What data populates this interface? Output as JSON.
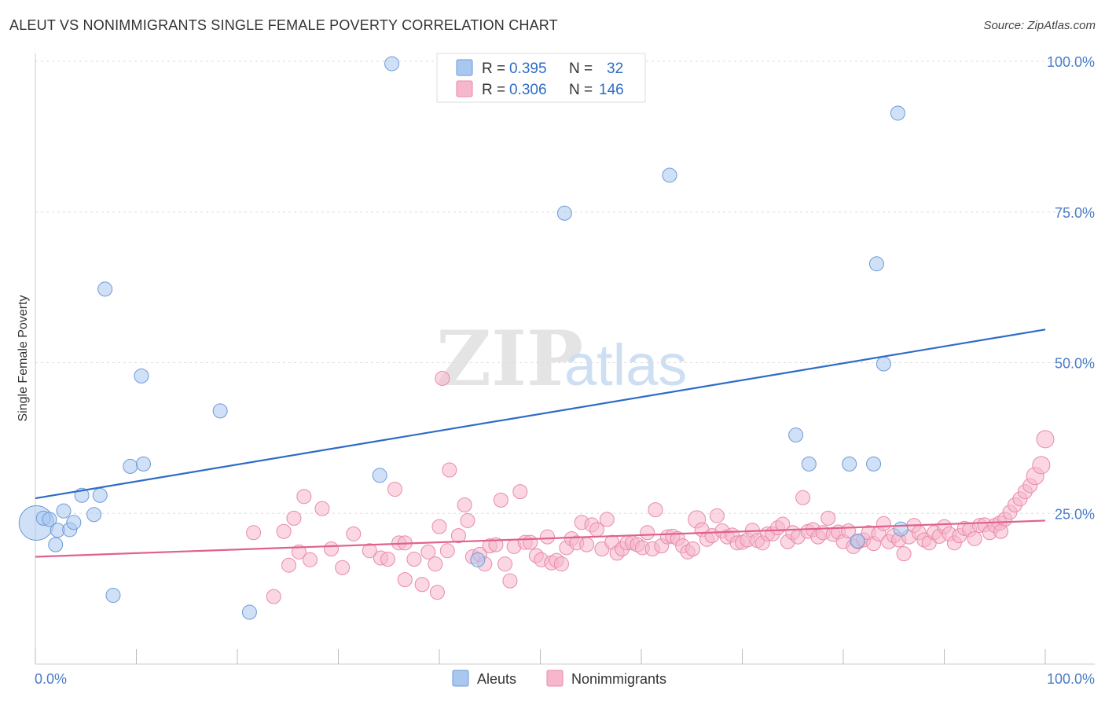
{
  "title": "ALEUT VS NONIMMIGRANTS SINGLE FEMALE POVERTY CORRELATION CHART",
  "source": "Source: ZipAtlas.com",
  "watermark": {
    "zip": "ZIP",
    "atlas": "atlas"
  },
  "colors": {
    "aleut_fill": "#a9c8f0",
    "aleut_stroke": "#6d9ad6",
    "aleut_line": "#2f6cc6",
    "nonimm_fill": "#f6b6cb",
    "nonimm_stroke": "#e98aa9",
    "nonimm_line": "#e0618d",
    "tick_text": "#4a7cc9",
    "grid": "#dddddd"
  },
  "legend": {
    "rows": [
      {
        "r_label": "R =",
        "r_value": "0.395",
        "n_label": "N =",
        "n_value": "32"
      },
      {
        "r_label": "R =",
        "r_value": "0.306",
        "n_label": "N =",
        "n_value": "146"
      }
    ]
  },
  "chart_data": {
    "type": "scatter",
    "title": "ALEUT VS NONIMMIGRANTS SINGLE FEMALE POVERTY CORRELATION CHART",
    "xlabel": "",
    "ylabel": "Single Female Poverty",
    "xlim": [
      0,
      100
    ],
    "ylim": [
      0,
      100
    ],
    "x_tick_labels": [
      "0.0%",
      "100.0%"
    ],
    "y_ticks": [
      25,
      50,
      75,
      100
    ],
    "y_tick_labels": [
      "25.0%",
      "50.0%",
      "75.0%",
      "100.0%"
    ],
    "grid": true,
    "legend_position": "top-center",
    "series": [
      {
        "name": "Aleuts",
        "r": 0.395,
        "n": 32,
        "trend": {
          "x": [
            0,
            100
          ],
          "y": [
            27.5,
            55.5
          ]
        },
        "points": [
          [
            0.1,
            23.4,
            22
          ],
          [
            0.8,
            24.2,
            9
          ],
          [
            1.4,
            24.0,
            9
          ],
          [
            2.0,
            19.8,
            9
          ],
          [
            2.2,
            22.2,
            9
          ],
          [
            2.8,
            25.4,
            9
          ],
          [
            3.4,
            22.3,
            9
          ],
          [
            3.8,
            23.5,
            9
          ],
          [
            4.6,
            28.0,
            9
          ],
          [
            5.8,
            24.8,
            9
          ],
          [
            6.4,
            28.0,
            9
          ],
          [
            6.9,
            62.2,
            9
          ],
          [
            7.7,
            11.4,
            9
          ],
          [
            9.4,
            32.8,
            9
          ],
          [
            10.5,
            47.8,
            9
          ],
          [
            10.7,
            33.2,
            9
          ],
          [
            18.3,
            42.0,
            9
          ],
          [
            21.2,
            8.6,
            9
          ],
          [
            34.1,
            31.3,
            9
          ],
          [
            35.3,
            99.6,
            9
          ],
          [
            43.8,
            17.3,
            9
          ],
          [
            52.4,
            74.8,
            9
          ],
          [
            62.8,
            81.1,
            9
          ],
          [
            75.3,
            38.0,
            9
          ],
          [
            76.6,
            33.2,
            9
          ],
          [
            80.6,
            33.2,
            9
          ],
          [
            81.4,
            20.4,
            9
          ],
          [
            83.0,
            33.2,
            9
          ],
          [
            83.3,
            66.4,
            9
          ],
          [
            84.0,
            49.8,
            9
          ],
          [
            85.4,
            91.4,
            9
          ],
          [
            85.7,
            22.4,
            9
          ]
        ]
      },
      {
        "name": "Nonimmigrants",
        "r": 0.306,
        "n": 146,
        "trend": {
          "x": [
            0,
            100
          ],
          "y": [
            17.8,
            23.8
          ]
        },
        "points": [
          [
            21.6,
            21.8,
            9
          ],
          [
            23.6,
            11.2,
            9
          ],
          [
            24.6,
            22.0,
            9
          ],
          [
            25.1,
            16.4,
            9
          ],
          [
            25.6,
            24.2,
            9
          ],
          [
            26.1,
            18.6,
            9
          ],
          [
            26.6,
            27.8,
            9
          ],
          [
            27.2,
            17.3,
            9
          ],
          [
            28.4,
            25.8,
            9
          ],
          [
            29.3,
            19.1,
            9
          ],
          [
            30.4,
            16.0,
            9
          ],
          [
            31.5,
            21.6,
            9
          ],
          [
            33.1,
            18.8,
            9
          ],
          [
            34.2,
            17.6,
            9
          ],
          [
            34.9,
            17.4,
            9
          ],
          [
            35.6,
            29.0,
            9
          ],
          [
            36.0,
            20.1,
            9
          ],
          [
            36.6,
            14.0,
            9
          ],
          [
            37.5,
            17.4,
            9
          ],
          [
            38.3,
            13.2,
            9
          ],
          [
            38.9,
            18.6,
            9
          ],
          [
            39.6,
            16.6,
            9
          ],
          [
            39.8,
            11.9,
            9
          ],
          [
            40.0,
            22.8,
            9
          ],
          [
            40.3,
            47.4,
            9
          ],
          [
            40.8,
            18.8,
            9
          ],
          [
            41.0,
            32.2,
            9
          ],
          [
            41.9,
            21.3,
            9
          ],
          [
            42.5,
            26.4,
            9
          ],
          [
            42.8,
            23.8,
            9
          ],
          [
            43.3,
            17.8,
            9
          ],
          [
            44.0,
            18.2,
            9
          ],
          [
            44.5,
            16.6,
            9
          ],
          [
            45.0,
            19.6,
            9
          ],
          [
            45.6,
            19.8,
            9
          ],
          [
            46.1,
            27.2,
            9
          ],
          [
            46.5,
            16.6,
            9
          ],
          [
            47.0,
            13.8,
            9
          ],
          [
            47.4,
            19.5,
            9
          ],
          [
            48.0,
            28.6,
            9
          ],
          [
            48.5,
            20.2,
            9
          ],
          [
            49.0,
            20.2,
            9
          ],
          [
            49.6,
            18.0,
            9
          ],
          [
            50.1,
            17.3,
            9
          ],
          [
            50.7,
            21.1,
            9
          ],
          [
            51.1,
            16.8,
            9
          ],
          [
            51.6,
            17.2,
            9
          ],
          [
            52.1,
            16.6,
            9
          ],
          [
            52.6,
            19.3,
            9
          ],
          [
            53.1,
            20.8,
            9
          ],
          [
            53.6,
            20.1,
            9
          ],
          [
            54.1,
            23.5,
            9
          ],
          [
            54.6,
            19.8,
            9
          ],
          [
            55.1,
            23.1,
            9
          ],
          [
            55.6,
            22.3,
            9
          ],
          [
            56.1,
            19.1,
            9
          ],
          [
            56.6,
            24.0,
            9
          ],
          [
            57.1,
            20.2,
            9
          ],
          [
            57.6,
            18.4,
            9
          ],
          [
            58.1,
            19.1,
            9
          ],
          [
            58.6,
            20.1,
            9
          ],
          [
            59.1,
            20.1,
            9
          ],
          [
            59.6,
            19.8,
            9
          ],
          [
            60.1,
            19.3,
            9
          ],
          [
            60.6,
            21.8,
            9
          ],
          [
            61.1,
            19.1,
            9
          ],
          [
            61.4,
            25.6,
            9
          ],
          [
            62.0,
            19.6,
            9
          ],
          [
            62.6,
            21.1,
            9
          ],
          [
            63.1,
            21.2,
            9
          ],
          [
            63.6,
            20.8,
            9
          ],
          [
            64.1,
            19.6,
            9
          ],
          [
            64.6,
            18.6,
            9
          ],
          [
            65.1,
            19.1,
            9
          ],
          [
            65.5,
            24.0,
            11
          ],
          [
            66.0,
            22.3,
            9
          ],
          [
            66.5,
            20.7,
            9
          ],
          [
            67.0,
            21.3,
            9
          ],
          [
            67.5,
            24.6,
            9
          ],
          [
            68.0,
            22.1,
            9
          ],
          [
            68.5,
            21.1,
            9
          ],
          [
            69.0,
            21.4,
            9
          ],
          [
            69.5,
            20.1,
            9
          ],
          [
            70.0,
            20.2,
            9
          ],
          [
            70.5,
            20.6,
            9
          ],
          [
            71.0,
            22.2,
            9
          ],
          [
            71.5,
            20.5,
            9
          ],
          [
            72.0,
            20.1,
            9
          ],
          [
            72.5,
            21.6,
            9
          ],
          [
            73.0,
            21.6,
            9
          ],
          [
            73.5,
            22.6,
            9
          ],
          [
            74.0,
            23.2,
            9
          ],
          [
            74.5,
            20.3,
            9
          ],
          [
            75.0,
            21.8,
            9
          ],
          [
            75.5,
            21.1,
            9
          ],
          [
            76.0,
            27.6,
            9
          ],
          [
            76.5,
            22.0,
            9
          ],
          [
            77.0,
            22.3,
            9
          ],
          [
            77.5,
            21.1,
            9
          ],
          [
            78.0,
            21.8,
            9
          ],
          [
            78.5,
            24.2,
            9
          ],
          [
            79.0,
            21.5,
            9
          ],
          [
            79.5,
            21.9,
            9
          ],
          [
            80.0,
            20.3,
            9
          ],
          [
            80.5,
            22.1,
            9
          ],
          [
            81.0,
            19.5,
            9
          ],
          [
            81.5,
            20.3,
            9
          ],
          [
            82.0,
            20.6,
            9
          ],
          [
            82.5,
            21.8,
            9
          ],
          [
            83.0,
            20.0,
            9
          ],
          [
            83.5,
            21.6,
            9
          ],
          [
            84.0,
            23.3,
            9
          ],
          [
            84.5,
            20.3,
            9
          ],
          [
            85.0,
            21.3,
            9
          ],
          [
            85.5,
            20.6,
            9
          ],
          [
            86.0,
            18.3,
            9
          ],
          [
            86.5,
            21.1,
            9
          ],
          [
            87.0,
            23.0,
            9
          ],
          [
            87.5,
            21.8,
            9
          ],
          [
            88.0,
            20.6,
            9
          ],
          [
            88.5,
            20.1,
            9
          ],
          [
            89.0,
            21.8,
            9
          ],
          [
            89.5,
            21.2,
            9
          ],
          [
            90.0,
            22.8,
            9
          ],
          [
            90.5,
            21.6,
            9
          ],
          [
            91.0,
            20.1,
            9
          ],
          [
            91.5,
            21.3,
            9
          ],
          [
            92.0,
            22.5,
            9
          ],
          [
            92.5,
            22.3,
            9
          ],
          [
            93.0,
            20.8,
            9
          ],
          [
            93.5,
            23.0,
            9
          ],
          [
            94.0,
            23.1,
            9
          ],
          [
            94.5,
            21.8,
            9
          ],
          [
            95.0,
            23.0,
            9
          ],
          [
            95.5,
            23.4,
            9
          ],
          [
            96.0,
            24.0,
            9
          ],
          [
            96.5,
            25.2,
            9
          ],
          [
            97.0,
            26.4,
            9
          ],
          [
            97.5,
            27.4,
            9
          ],
          [
            98.0,
            28.6,
            9
          ],
          [
            98.5,
            29.6,
            9
          ],
          [
            99.0,
            31.2,
            11
          ],
          [
            99.6,
            33.0,
            11
          ],
          [
            100.0,
            37.3,
            11
          ],
          [
            95.6,
            22.0,
            9
          ],
          [
            36.6,
            20.1,
            9
          ]
        ]
      }
    ]
  }
}
